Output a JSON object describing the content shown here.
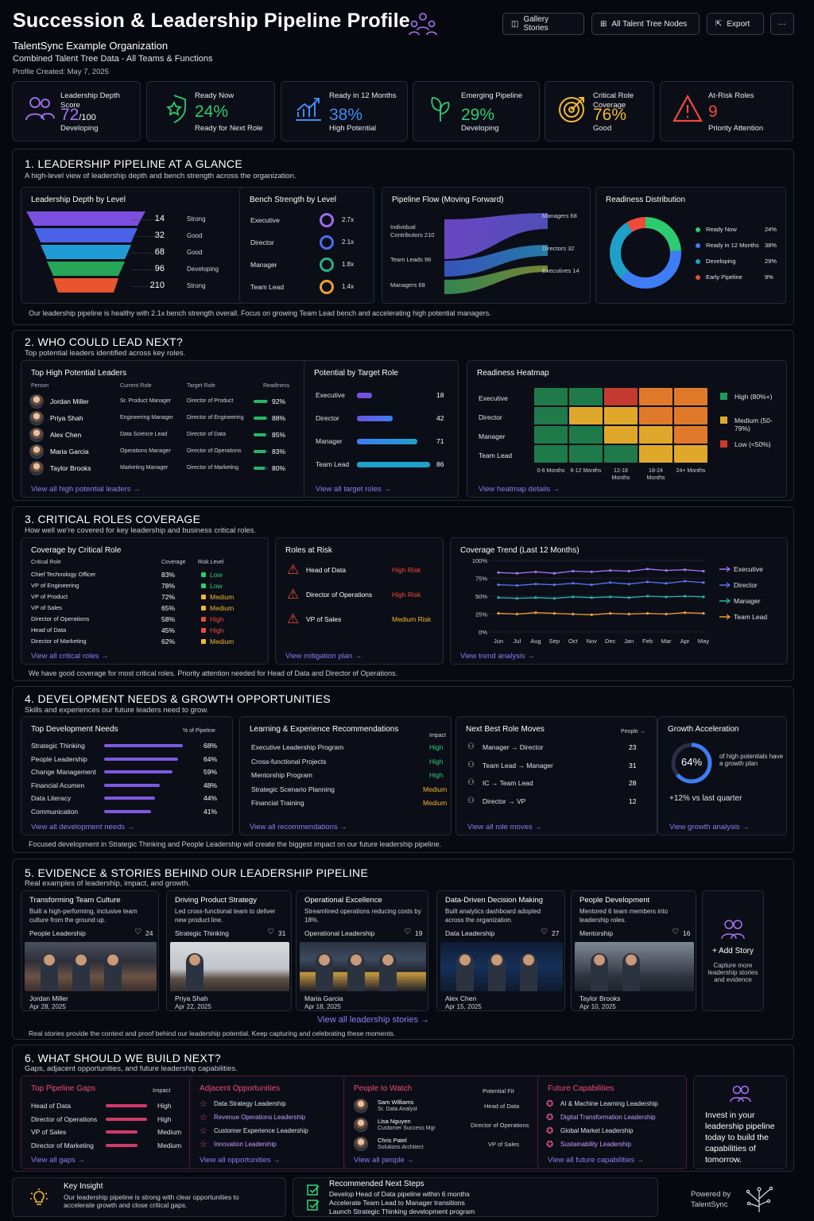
{
  "header": {
    "title": "Succession & Leadership Pipeline Profile",
    "org": "TalentSync Example Organization",
    "scope": "Combined Talent Tree Data - All Teams & Functions",
    "created": "Profile Created: May 7, 2025"
  },
  "toolbar": {
    "gallery": "Gallery Stories",
    "nodes": "All Talent Tree Nodes",
    "export": "Export",
    "more": "···"
  },
  "kpis": [
    {
      "label": "Leadership Depth Score",
      "value": "72",
      "suffix": "/100",
      "status": "Developing",
      "color": "#a873f5",
      "icon": "people-icon"
    },
    {
      "label": "Ready Now",
      "value": "24%",
      "suffix": "",
      "status": "Ready for Next Role",
      "color": "#2ecc71",
      "icon": "shield-star-icon"
    },
    {
      "label": "Ready in 12 Months",
      "value": "38%",
      "suffix": "",
      "status": "High Potential",
      "color": "#3e8df5",
      "icon": "chart-up-icon"
    },
    {
      "label": "Emerging Pipeline",
      "value": "29%",
      "suffix": "",
      "status": "Developing",
      "color": "#2ecc71",
      "icon": "leaf-icon"
    },
    {
      "label": "Critical Role Coverage",
      "value": "76%",
      "suffix": "",
      "status": "Good",
      "color": "#f5b731",
      "icon": "target-icon"
    },
    {
      "label": "At-Risk Roles",
      "value": "9",
      "suffix": "",
      "status": "Priority Attention",
      "color": "#f04a3a",
      "icon": "warning-icon"
    }
  ],
  "s1": {
    "title": "1. LEADERSHIP PIPELINE AT A GLANCE",
    "sub": "A high-level view of leadership depth and bench strength across the organization.",
    "depth": {
      "title": "Leadership Depth by Level",
      "rows": [
        {
          "n": "14",
          "s": "Strong",
          "c": "#7b4fe0"
        },
        {
          "n": "32",
          "s": "Good",
          "c": "#4a62e8"
        },
        {
          "n": "68",
          "s": "Good",
          "c": "#1f9bd6"
        },
        {
          "n": "96",
          "s": "Developing",
          "c": "#27a65a"
        },
        {
          "n": "210",
          "s": "Strong",
          "c": "#e8542e"
        }
      ]
    },
    "bench": {
      "title": "Bench Strength by Level",
      "rows": [
        {
          "l": "Executive",
          "v": "2.7x",
          "c": "#9b6cf0"
        },
        {
          "l": "Director",
          "v": "2.1x",
          "c": "#4d6df0"
        },
        {
          "l": "Manager",
          "v": "1.8x",
          "c": "#27b08a"
        },
        {
          "l": "Team Lead",
          "v": "1.4x",
          "c": "#f0a030"
        }
      ]
    },
    "flow": {
      "title": "Pipeline Flow (Moving Forward)",
      "left": [
        "Individual Contributors 210",
        "Team Leads 96",
        "Managers 68"
      ],
      "right": [
        "Managers 68",
        "Directors 32",
        "Executives 14"
      ]
    },
    "ready": {
      "title": "Readiness Distribution",
      "items": [
        {
          "l": "Ready Now",
          "v": "24%",
          "c": "#2ecc71"
        },
        {
          "l": "Ready in 12 Months",
          "v": "38%",
          "c": "#3e7df5"
        },
        {
          "l": "Developing",
          "v": "29%",
          "c": "#1fa0c8"
        },
        {
          "l": "Early Pipeline",
          "v": "9%",
          "c": "#f04a3a"
        }
      ]
    },
    "note": "Our leadership pipeline is healthy with 2.1x bench strength overall. Focus on growing Team Lead bench and accelerating high potential managers."
  },
  "s2": {
    "title": "2. WHO COULD LEAD NEXT?",
    "sub": "Top potential leaders identified across key roles.",
    "leaders": {
      "title": "Top High Potential Leaders",
      "cols": [
        "Person",
        "Current Role",
        "Target Role",
        "Readiness"
      ],
      "rows": [
        {
          "p": "Jordan Miller",
          "c": "Sr. Product Manager",
          "t": "Director of Product",
          "r": "92%"
        },
        {
          "p": "Priya Shah",
          "c": "Engineering Manager",
          "t": "Director of Engineering",
          "r": "88%"
        },
        {
          "p": "Alex Chen",
          "c": "Data Science Lead",
          "t": "Director of Data",
          "r": "85%"
        },
        {
          "p": "Maria Garcia",
          "c": "Operations Manager",
          "t": "Director of Operations",
          "r": "83%"
        },
        {
          "p": "Taylor Brooks",
          "c": "Marketing Manager",
          "t": "Director of Marketing",
          "r": "80%"
        }
      ],
      "link": "View all high potential leaders →"
    },
    "target": {
      "title": "Potential by Target Role",
      "rows": [
        {
          "l": "Executive",
          "v": "18"
        },
        {
          "l": "Director",
          "v": "42"
        },
        {
          "l": "Manager",
          "v": "71"
        },
        {
          "l": "Team Lead",
          "v": "86"
        }
      ],
      "link": "View all target roles →"
    },
    "heat": {
      "title": "Readiness Heatmap",
      "rows": [
        "Executive",
        "Director",
        "Manager",
        "Team Lead"
      ],
      "cols": [
        "0-6 Months",
        "6-12 Months",
        "12-18 Months",
        "18-24 Months",
        "24+ Months"
      ],
      "legend": [
        "High (80%+)",
        "Medium (50-79%)",
        "Low (<50%)"
      ],
      "link": "View heatmap details →"
    }
  },
  "s3": {
    "title": "3. CRITICAL ROLES COVERAGE",
    "sub": "How well we're covered for key leadership and business critical roles.",
    "cov": {
      "title": "Coverage by Critical Role",
      "cols": [
        "Critical Role",
        "Coverage",
        "Risk Level"
      ],
      "rows": [
        {
          "r": "Chief Technology Officer",
          "c": "83%",
          "k": "Low"
        },
        {
          "r": "VP of Engineering",
          "c": "78%",
          "k": "Low"
        },
        {
          "r": "VP of Product",
          "c": "72%",
          "k": "Medium"
        },
        {
          "r": "VP of Sales",
          "c": "65%",
          "k": "Medium"
        },
        {
          "r": "Director of Operations",
          "c": "58%",
          "k": "High"
        },
        {
          "r": "Head of Data",
          "c": "45%",
          "k": "High"
        },
        {
          "r": "Director of Marketing",
          "c": "62%",
          "k": "Medium"
        }
      ],
      "link": "View all critical roles →"
    },
    "risk": {
      "title": "Roles at Risk",
      "rows": [
        {
          "r": "Head of Data",
          "k": "High Risk"
        },
        {
          "r": "Director of Operations",
          "k": "High Risk"
        },
        {
          "r": "VP of Sales",
          "k": "Medium Risk"
        }
      ],
      "link": "View mitigation plan →"
    },
    "trend": {
      "title": "Coverage Trend (Last 12 Months)",
      "link": "View trend analysis →"
    },
    "note": "We have good coverage for most critical roles. Priority attention needed for Head of Data and Director of Operations."
  },
  "s4": {
    "title": "4.  DEVELOPMENT NEEDS & GROWTH OPPORTUNITIES",
    "sub": "Skills and experiences our future leaders need to grow.",
    "needs": {
      "title": "Top Development Needs",
      "col": "% of Pipeline",
      "rows": [
        {
          "l": "Strategic Thinking",
          "v": "68%"
        },
        {
          "l": "People Leadership",
          "v": "64%"
        },
        {
          "l": "Change Management",
          "v": "59%"
        },
        {
          "l": "Financial Acumen",
          "v": "48%"
        },
        {
          "l": "Data Literacy",
          "v": "44%"
        },
        {
          "l": "Communication",
          "v": "41%"
        }
      ],
      "link": "View all development needs →"
    },
    "recs": {
      "title": "Learning & Experience Recommendations",
      "col": "Impact",
      "rows": [
        {
          "l": "Executive Leadership Program",
          "v": "High"
        },
        {
          "l": "Cross-functional Projects",
          "v": "High"
        },
        {
          "l": "Mentorship Program",
          "v": "High"
        },
        {
          "l": "Strategic Scenario Planning",
          "v": "Medium"
        },
        {
          "l": "Financial Training",
          "v": "Medium"
        }
      ],
      "link": "View all recommendations →"
    },
    "moves": {
      "title": "Next Best Role Moves",
      "col": "People →",
      "rows": [
        {
          "a": "Manager",
          "b": "Director",
          "v": "23"
        },
        {
          "a": "Team Lead",
          "b": "Manager",
          "v": "31"
        },
        {
          "a": "IC",
          "b": "Team Lead",
          "v": "28"
        },
        {
          "a": "Director",
          "b": "VP",
          "v": "12"
        }
      ],
      "link": "View all role moves →"
    },
    "accel": {
      "title": "Growth Acceleration",
      "pct": "64%",
      "desc": "of high potentials have a growth plan",
      "delta": "+12% vs last quarter",
      "link": "View growth analysis →"
    },
    "note": "Focused development in Strategic Thinking and People Leadership will create the biggest impact on our future leadership pipeline."
  },
  "s5": {
    "title": "5. EVIDENCE & STORIES BEHIND OUR LEADERSHIP PIPELINE",
    "sub": "Real examples of leadership, impact, and growth.",
    "stories": [
      {
        "t": "Transforming Team Culture",
        "d": "Built a high-performing, inclusive team culture from the ground up.",
        "tag": "People Leadership",
        "likes": "24",
        "who": "Jordan Miller",
        "date": "Apr 28, 2025"
      },
      {
        "t": "Driving Product Strategy",
        "d": "Led cross-functional team to deliver new product line.",
        "tag": "Strategic Thinking",
        "likes": "31",
        "who": "Priya Shah",
        "date": "Apr 22, 2025"
      },
      {
        "t": "Operational Excellence",
        "d": "Streamlined operations reducing costs by 18%.",
        "tag": "Operational Leadership",
        "likes": "19",
        "who": "Maria Garcia",
        "date": "Apr 18, 2025"
      },
      {
        "t": "Data-Driven Decision Making",
        "d": "Built analytics dashboard adopted across the organization.",
        "tag": "Data Leadership",
        "likes": "27",
        "who": "Alex Chen",
        "date": "Apr 15, 2025"
      },
      {
        "t": "People Development",
        "d": "Mentored 6 team members into leadership roles.",
        "tag": "Mentorship",
        "likes": "16",
        "who": "Taylor Brooks",
        "date": "Apr 10, 2025"
      }
    ],
    "add": "+ Add Story",
    "addsub": "Capture more leadership stories and evidence",
    "link": "View all leadership stories →",
    "note": "Real stories provide the context and proof behind our leadership potential. Keep capturing and celebrating these moments."
  },
  "s6": {
    "title": "6.  WHAT SHOULD WE BUILD NEXT?",
    "sub": "Gaps, adjacent opportunities, and future leadership capabilities.",
    "gaps": {
      "title": "Top Pipeline Gaps",
      "col": "Impact",
      "rows": [
        {
          "l": "Head of Data",
          "v": "High"
        },
        {
          "l": "Director of Operations",
          "v": "High"
        },
        {
          "l": "VP of Sales",
          "v": "Medium"
        },
        {
          "l": "Director of Marketing",
          "v": "Medium"
        }
      ],
      "link": "View all gaps →"
    },
    "adj": {
      "title": "Adjacent Opportunities",
      "rows": [
        "Data Strategy Leadership",
        "Revenue Operations Leadership",
        "Customer Experience Leadership",
        "Innovation Leadership"
      ],
      "link": "View all opportunities →"
    },
    "watch": {
      "title": "People to Watch",
      "col": "Potential Fit",
      "rows": [
        {
          "n": "Sam Williams",
          "r": "Sr. Data Analyst",
          "f": "Head of Data"
        },
        {
          "n": "Lisa Nguyen",
          "r": "Customer Success Mgr",
          "f": "Director of Operations"
        },
        {
          "n": "Chris Patel",
          "r": "Solutions Architect",
          "f": "VP of Sales"
        }
      ],
      "link": "View all people →"
    },
    "future": {
      "title": "Future Capabilities",
      "rows": [
        "AI & Machine Learning Leadership",
        "Digital Transformation Leadership",
        "Global Market Leadership",
        "Sustainability Leadership"
      ],
      "link": "View all future capabilities →"
    },
    "invest": "Invest in your leadership pipeline today to build the capabilities of tomorrow."
  },
  "footer": {
    "insight_t": "Key Insight",
    "insight": "Our leadership pipeline is strong with clear opportunities to accelerate growth and close critical gaps.",
    "steps_t": "Recommended Next Steps",
    "steps": [
      "Develop Head of Data pipeline within 6 months",
      "Accelerate Team Lead to Manager transitions",
      "Launch Strategic Thinking development program"
    ],
    "powered": "Powered by",
    "brand": "TalentSync"
  },
  "chart_data": {
    "type": "line",
    "title": "Coverage Trend (Last 12 Months)",
    "x": [
      "Jun",
      "Jul",
      "Aug",
      "Sep",
      "Oct",
      "Nov",
      "Dec",
      "Jan",
      "Feb",
      "Mar",
      "Apr",
      "May"
    ],
    "ylim": [
      0,
      100
    ],
    "yticks": [
      "100%",
      "75%",
      "50%",
      "25%",
      "0%"
    ],
    "series": [
      {
        "name": "Executive",
        "color": "#a873f5",
        "values": [
          83,
          82,
          84,
          82,
          85,
          84,
          86,
          85,
          88,
          86,
          87,
          85
        ]
      },
      {
        "name": "Director",
        "color": "#5b74f0",
        "values": [
          66,
          65,
          67,
          66,
          68,
          66,
          69,
          67,
          70,
          68,
          71,
          69
        ]
      },
      {
        "name": "Manager",
        "color": "#27b5b0",
        "values": [
          48,
          47,
          48,
          47,
          49,
          48,
          49,
          48,
          50,
          49,
          50,
          49
        ]
      },
      {
        "name": "Team Lead",
        "color": "#f0a030",
        "values": [
          26,
          25,
          27,
          26,
          25,
          24,
          26,
          25,
          26,
          25,
          27,
          26
        ]
      }
    ]
  }
}
